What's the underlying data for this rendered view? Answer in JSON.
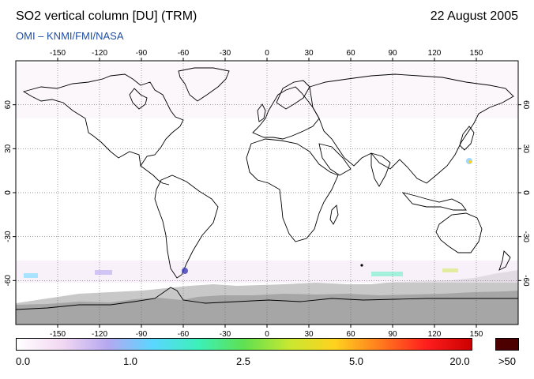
{
  "header": {
    "title": "SO2 vertical column [DU] (TRM)",
    "date": "22 August 2005",
    "source": "OMI  –  KNMI/FMI/NASA"
  },
  "map": {
    "projection": "equirectangular",
    "lon_range": [
      -180,
      180
    ],
    "lat_range": [
      -90,
      90
    ],
    "grid": true,
    "lon_ticks": [
      "-150",
      "-120",
      "-90",
      "-60",
      "-30",
      "0",
      "30",
      "60",
      "90",
      "120",
      "150"
    ],
    "lat_ticks": [
      "60",
      "30",
      "0",
      "-30",
      "-60"
    ],
    "colors": {
      "land_outline": "#000000",
      "grid": "#666666",
      "no_data_light": "#c8c8c8",
      "no_data_dark": "#a6a6a6",
      "background": "#ffffff"
    }
  },
  "colorbar": {
    "labels": [
      "0.0",
      "1.0",
      "2.5",
      "5.0",
      "20.0",
      ">50"
    ],
    "stops": [
      "#ffffff",
      "#f2d8f2",
      "#b5a8f0",
      "#5ad6ff",
      "#3cf0b8",
      "#5fe050",
      "#c8e830",
      "#ffd21e",
      "#ff7a1e",
      "#ff1e1e",
      "#cc0000"
    ],
    "over_color": "#4d0000"
  }
}
